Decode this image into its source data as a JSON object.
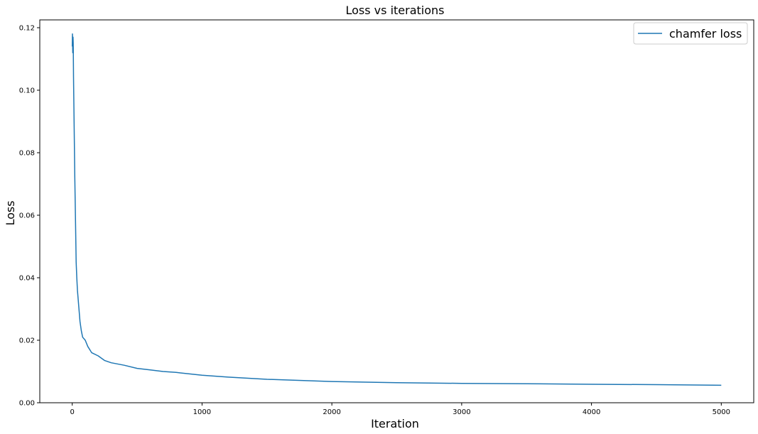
{
  "chart_data": {
    "type": "line",
    "title": "Loss vs iterations",
    "xlabel": "Iteration",
    "ylabel": "Loss",
    "xlim": [
      -250,
      5250
    ],
    "ylim": [
      0.0,
      0.1225
    ],
    "xticks": [
      0,
      1000,
      2000,
      3000,
      4000,
      5000
    ],
    "xtick_labels": [
      "0",
      "1000",
      "2000",
      "3000",
      "4000",
      "5000"
    ],
    "yticks": [
      0.0,
      0.02,
      0.04,
      0.06,
      0.08,
      0.1,
      0.12
    ],
    "ytick_labels": [
      "0.00",
      "0.02",
      "0.04",
      "0.06",
      "0.08",
      "0.10",
      "0.12"
    ],
    "grid": false,
    "legend_position": "top-right",
    "series": [
      {
        "name": "chamfer loss",
        "color": "#1f77b4",
        "x": [
          0,
          2,
          4,
          6,
          8,
          10,
          15,
          20,
          25,
          30,
          35,
          40,
          50,
          60,
          70,
          80,
          90,
          100,
          120,
          150,
          200,
          250,
          300,
          400,
          500,
          600,
          700,
          800,
          1000,
          1200,
          1500,
          2000,
          2500,
          3000,
          3500,
          4000,
          4500,
          5000
        ],
        "y": [
          0.114,
          0.118,
          0.112,
          0.117,
          0.115,
          0.104,
          0.088,
          0.072,
          0.058,
          0.045,
          0.04,
          0.036,
          0.031,
          0.026,
          0.023,
          0.021,
          0.0205,
          0.02,
          0.018,
          0.016,
          0.015,
          0.0135,
          0.0128,
          0.012,
          0.011,
          0.0105,
          0.01,
          0.0097,
          0.0088,
          0.0082,
          0.0075,
          0.0068,
          0.0064,
          0.0062,
          0.0061,
          0.0059,
          0.0058,
          0.0056
        ]
      }
    ]
  }
}
